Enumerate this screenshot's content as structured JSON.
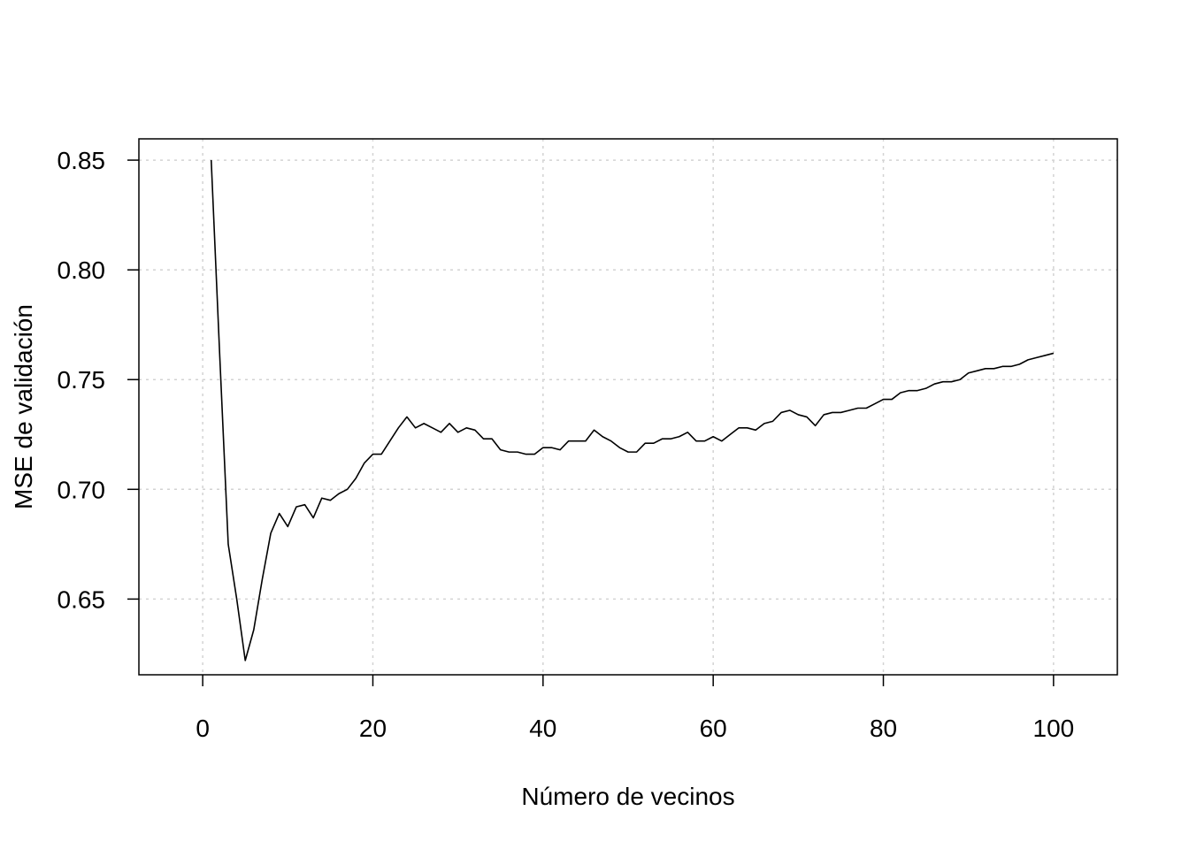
{
  "chart_data": {
    "type": "line",
    "xlabel": "Número de vecinos",
    "ylabel": "MSE de validación",
    "xlim": [
      -7.5,
      107.5
    ],
    "ylim": [
      0.6155,
      0.8597
    ],
    "xticks": [
      0,
      20,
      40,
      60,
      80,
      100
    ],
    "yticks": [
      0.65,
      0.7,
      0.75,
      0.8,
      0.85
    ],
    "xtick_labels": [
      "0",
      "20",
      "40",
      "60",
      "80",
      "100"
    ],
    "ytick_labels": [
      "0.65",
      "0.70",
      "0.75",
      "0.80",
      "0.85"
    ],
    "grid": true,
    "series": [
      {
        "x": [
          1,
          2,
          3,
          4,
          5,
          6,
          7,
          8,
          9,
          10,
          11,
          12,
          13,
          14,
          15,
          16,
          17,
          18,
          19,
          20,
          21,
          22,
          23,
          24,
          25,
          26,
          27,
          28,
          29,
          30,
          31,
          32,
          33,
          34,
          35,
          36,
          37,
          38,
          39,
          40,
          41,
          42,
          43,
          44,
          45,
          46,
          47,
          48,
          49,
          50,
          51,
          52,
          53,
          54,
          55,
          56,
          57,
          58,
          59,
          60,
          61,
          62,
          63,
          64,
          65,
          66,
          67,
          68,
          69,
          70,
          71,
          72,
          73,
          74,
          75,
          76,
          77,
          78,
          79,
          80,
          81,
          82,
          83,
          84,
          85,
          86,
          87,
          88,
          89,
          90,
          91,
          92,
          93,
          94,
          95,
          96,
          97,
          98,
          99,
          100
        ],
        "y": [
          0.85,
          0.761,
          0.675,
          0.65,
          0.622,
          0.636,
          0.659,
          0.68,
          0.689,
          0.683,
          0.692,
          0.693,
          0.687,
          0.696,
          0.695,
          0.698,
          0.7,
          0.705,
          0.712,
          0.716,
          0.716,
          0.722,
          0.728,
          0.733,
          0.728,
          0.73,
          0.728,
          0.726,
          0.73,
          0.726,
          0.728,
          0.727,
          0.723,
          0.723,
          0.718,
          0.717,
          0.717,
          0.716,
          0.716,
          0.719,
          0.719,
          0.718,
          0.722,
          0.722,
          0.722,
          0.727,
          0.724,
          0.722,
          0.719,
          0.717,
          0.717,
          0.721,
          0.721,
          0.723,
          0.723,
          0.724,
          0.726,
          0.722,
          0.722,
          0.724,
          0.722,
          0.725,
          0.728,
          0.728,
          0.727,
          0.73,
          0.731,
          0.735,
          0.736,
          0.734,
          0.733,
          0.729,
          0.734,
          0.735,
          0.735,
          0.736,
          0.737,
          0.737,
          0.739,
          0.741,
          0.741,
          0.744,
          0.745,
          0.745,
          0.746,
          0.748,
          0.749,
          0.749,
          0.75,
          0.753,
          0.754,
          0.755,
          0.755,
          0.756,
          0.756,
          0.757,
          0.759,
          0.76,
          0.761,
          0.762
        ]
      }
    ]
  }
}
